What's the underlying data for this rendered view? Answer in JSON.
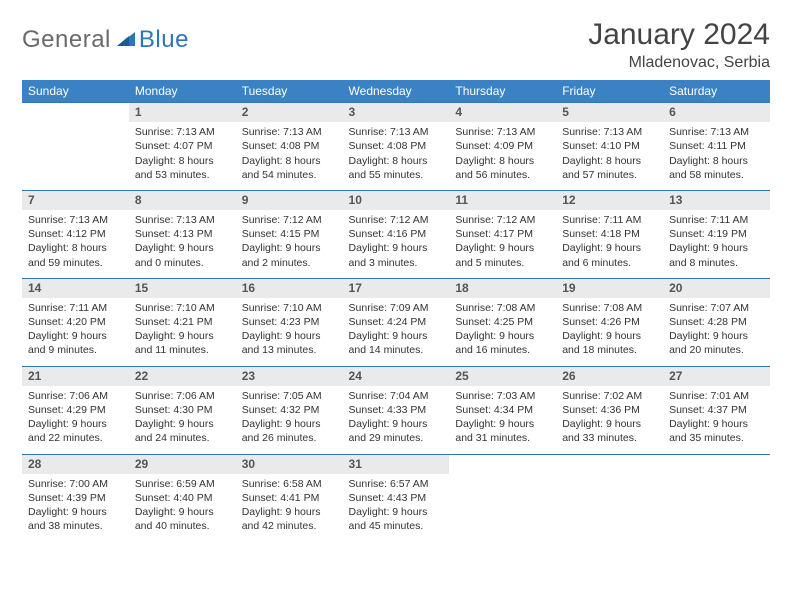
{
  "brand": {
    "part1": "General",
    "part2": "Blue"
  },
  "title": "January 2024",
  "location": "Mladenovac, Serbia",
  "colors": {
    "header_bg": "#3b82c4",
    "header_text": "#ffffff",
    "daynum_bg": "#e9eaeb",
    "row_border": "#2f76b9",
    "body_text": "#333333",
    "brand_gray": "#6a6a6a",
    "brand_blue": "#2f76b9"
  },
  "weekdays": [
    "Sunday",
    "Monday",
    "Tuesday",
    "Wednesday",
    "Thursday",
    "Friday",
    "Saturday"
  ],
  "weeks": [
    {
      "nums": [
        "",
        "1",
        "2",
        "3",
        "4",
        "5",
        "6"
      ],
      "cells": [
        "",
        "Sunrise: 7:13 AM\nSunset: 4:07 PM\nDaylight: 8 hours and 53 minutes.",
        "Sunrise: 7:13 AM\nSunset: 4:08 PM\nDaylight: 8 hours and 54 minutes.",
        "Sunrise: 7:13 AM\nSunset: 4:08 PM\nDaylight: 8 hours and 55 minutes.",
        "Sunrise: 7:13 AM\nSunset: 4:09 PM\nDaylight: 8 hours and 56 minutes.",
        "Sunrise: 7:13 AM\nSunset: 4:10 PM\nDaylight: 8 hours and 57 minutes.",
        "Sunrise: 7:13 AM\nSunset: 4:11 PM\nDaylight: 8 hours and 58 minutes."
      ]
    },
    {
      "nums": [
        "7",
        "8",
        "9",
        "10",
        "11",
        "12",
        "13"
      ],
      "cells": [
        "Sunrise: 7:13 AM\nSunset: 4:12 PM\nDaylight: 8 hours and 59 minutes.",
        "Sunrise: 7:13 AM\nSunset: 4:13 PM\nDaylight: 9 hours and 0 minutes.",
        "Sunrise: 7:12 AM\nSunset: 4:15 PM\nDaylight: 9 hours and 2 minutes.",
        "Sunrise: 7:12 AM\nSunset: 4:16 PM\nDaylight: 9 hours and 3 minutes.",
        "Sunrise: 7:12 AM\nSunset: 4:17 PM\nDaylight: 9 hours and 5 minutes.",
        "Sunrise: 7:11 AM\nSunset: 4:18 PM\nDaylight: 9 hours and 6 minutes.",
        "Sunrise: 7:11 AM\nSunset: 4:19 PM\nDaylight: 9 hours and 8 minutes."
      ]
    },
    {
      "nums": [
        "14",
        "15",
        "16",
        "17",
        "18",
        "19",
        "20"
      ],
      "cells": [
        "Sunrise: 7:11 AM\nSunset: 4:20 PM\nDaylight: 9 hours and 9 minutes.",
        "Sunrise: 7:10 AM\nSunset: 4:21 PM\nDaylight: 9 hours and 11 minutes.",
        "Sunrise: 7:10 AM\nSunset: 4:23 PM\nDaylight: 9 hours and 13 minutes.",
        "Sunrise: 7:09 AM\nSunset: 4:24 PM\nDaylight: 9 hours and 14 minutes.",
        "Sunrise: 7:08 AM\nSunset: 4:25 PM\nDaylight: 9 hours and 16 minutes.",
        "Sunrise: 7:08 AM\nSunset: 4:26 PM\nDaylight: 9 hours and 18 minutes.",
        "Sunrise: 7:07 AM\nSunset: 4:28 PM\nDaylight: 9 hours and 20 minutes."
      ]
    },
    {
      "nums": [
        "21",
        "22",
        "23",
        "24",
        "25",
        "26",
        "27"
      ],
      "cells": [
        "Sunrise: 7:06 AM\nSunset: 4:29 PM\nDaylight: 9 hours and 22 minutes.",
        "Sunrise: 7:06 AM\nSunset: 4:30 PM\nDaylight: 9 hours and 24 minutes.",
        "Sunrise: 7:05 AM\nSunset: 4:32 PM\nDaylight: 9 hours and 26 minutes.",
        "Sunrise: 7:04 AM\nSunset: 4:33 PM\nDaylight: 9 hours and 29 minutes.",
        "Sunrise: 7:03 AM\nSunset: 4:34 PM\nDaylight: 9 hours and 31 minutes.",
        "Sunrise: 7:02 AM\nSunset: 4:36 PM\nDaylight: 9 hours and 33 minutes.",
        "Sunrise: 7:01 AM\nSunset: 4:37 PM\nDaylight: 9 hours and 35 minutes."
      ]
    },
    {
      "nums": [
        "28",
        "29",
        "30",
        "31",
        "",
        "",
        ""
      ],
      "cells": [
        "Sunrise: 7:00 AM\nSunset: 4:39 PM\nDaylight: 9 hours and 38 minutes.",
        "Sunrise: 6:59 AM\nSunset: 4:40 PM\nDaylight: 9 hours and 40 minutes.",
        "Sunrise: 6:58 AM\nSunset: 4:41 PM\nDaylight: 9 hours and 42 minutes.",
        "Sunrise: 6:57 AM\nSunset: 4:43 PM\nDaylight: 9 hours and 45 minutes.",
        "",
        "",
        ""
      ]
    }
  ]
}
